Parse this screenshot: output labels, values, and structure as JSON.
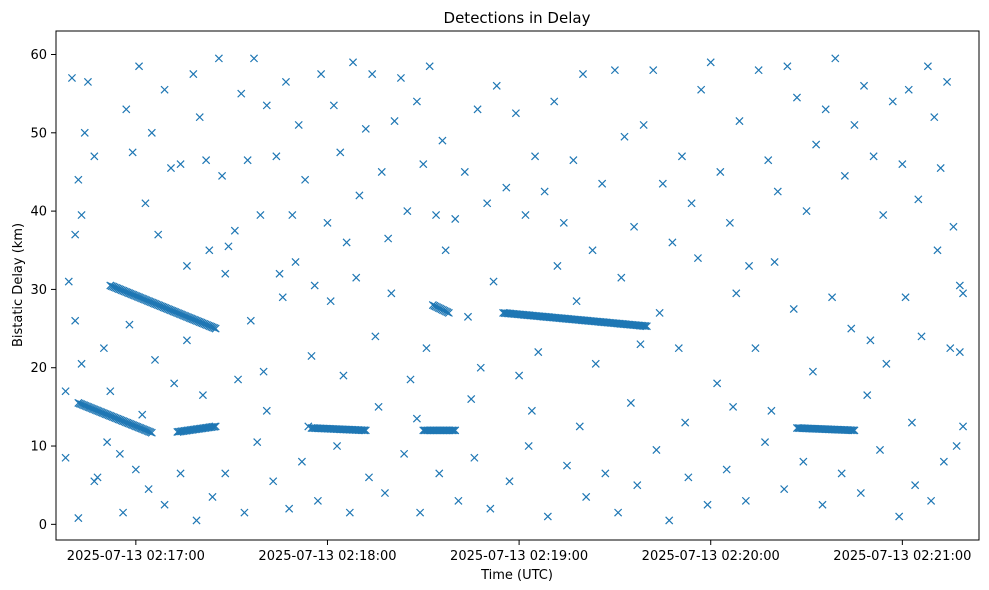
{
  "chart_data": {
    "type": "scatter",
    "title": "Detections in Delay",
    "xlabel": "Time (UTC)",
    "ylabel": "Bistatic Delay (km)",
    "marker": "x",
    "color": "#1f77b4",
    "grid": false,
    "legend": "none",
    "xlim": [
      "2025-07-13 02:16:35",
      "2025-07-13 02:21:24"
    ],
    "ylim": [
      -2,
      63
    ],
    "x_ticks": [
      "2025-07-13 02:17:00",
      "2025-07-13 02:18:00",
      "2025-07-13 02:19:00",
      "2025-07-13 02:20:00",
      "2025-07-13 02:21:00"
    ],
    "y_ticks": [
      "0",
      "10",
      "20",
      "30",
      "40",
      "50",
      "60"
    ],
    "tracks": [
      {
        "start": [
          "2025-07-13 02:16:42",
          15.5
        ],
        "end": [
          "2025-07-13 02:17:05",
          11.7
        ]
      },
      {
        "start": [
          "2025-07-13 02:17:13",
          11.8
        ],
        "end": [
          "2025-07-13 02:17:25",
          12.5
        ]
      },
      {
        "start": [
          "2025-07-13 02:16:52",
          30.5
        ],
        "end": [
          "2025-07-13 02:17:25",
          25.0
        ]
      },
      {
        "start": [
          "2025-07-13 02:17:55",
          12.3
        ],
        "end": [
          "2025-07-13 02:18:12",
          12.0
        ]
      },
      {
        "start": [
          "2025-07-13 02:18:30",
          12.0
        ],
        "end": [
          "2025-07-13 02:18:40",
          12.0
        ]
      },
      {
        "start": [
          "2025-07-13 02:18:33",
          28.0
        ],
        "end": [
          "2025-07-13 02:18:38",
          27.0
        ]
      },
      {
        "start": [
          "2025-07-13 02:18:55",
          27.0
        ],
        "end": [
          "2025-07-13 02:19:40",
          25.3
        ]
      },
      {
        "start": [
          "2025-07-13 02:20:27",
          12.3
        ],
        "end": [
          "2025-07-13 02:20:45",
          12.0
        ]
      }
    ],
    "points": [
      [
        "2025-07-13 02:16:40",
        57.0
      ],
      [
        "2025-07-13 02:16:45",
        56.5
      ],
      [
        "2025-07-13 02:16:42",
        44.0
      ],
      [
        "2025-07-13 02:16:44",
        50.0
      ],
      [
        "2025-07-13 02:16:47",
        47.0
      ],
      [
        "2025-07-13 02:16:43",
        39.5
      ],
      [
        "2025-07-13 02:16:41",
        37.0
      ],
      [
        "2025-07-13 02:16:39",
        31.0
      ],
      [
        "2025-07-13 02:16:41",
        26.0
      ],
      [
        "2025-07-13 02:16:43",
        20.5
      ],
      [
        "2025-07-13 02:16:38",
        17.0
      ],
      [
        "2025-07-13 02:16:38",
        8.5
      ],
      [
        "2025-07-13 02:16:42",
        0.8
      ],
      [
        "2025-07-13 02:16:48",
        6.0
      ],
      [
        "2025-07-13 02:16:52",
        17.0
      ],
      [
        "2025-07-13 02:16:55",
        9.0
      ],
      [
        "2025-07-13 02:16:57",
        53.0
      ],
      [
        "2025-07-13 02:16:59",
        47.5
      ],
      [
        "2025-07-13 02:17:01",
        58.5
      ],
      [
        "2025-07-13 02:17:03",
        41.0
      ],
      [
        "2025-07-13 02:17:05",
        50.0
      ],
      [
        "2025-07-13 02:17:07",
        37.0
      ],
      [
        "2025-07-13 02:17:09",
        55.5
      ],
      [
        "2025-07-13 02:17:11",
        45.5
      ],
      [
        "2025-07-13 02:17:14",
        46.0
      ],
      [
        "2025-07-13 02:17:16",
        33.0
      ],
      [
        "2025-07-13 02:17:18",
        57.5
      ],
      [
        "2025-07-13 02:17:20",
        52.0
      ],
      [
        "2025-07-13 02:17:22",
        46.5
      ],
      [
        "2025-07-13 02:17:23",
        35.0
      ],
      [
        "2025-07-13 02:17:26",
        59.5
      ],
      [
        "2025-07-13 02:17:27",
        44.5
      ],
      [
        "2025-07-13 02:17:29",
        35.5
      ],
      [
        "2025-07-13 02:17:31",
        37.5
      ],
      [
        "2025-07-13 02:17:33",
        55.0
      ],
      [
        "2025-07-13 02:17:35",
        46.5
      ],
      [
        "2025-07-13 02:17:37",
        59.5
      ],
      [
        "2025-07-13 02:17:39",
        39.5
      ],
      [
        "2025-07-13 02:17:41",
        53.5
      ],
      [
        "2025-07-13 02:17:44",
        47.0
      ],
      [
        "2025-07-13 02:17:45",
        32.0
      ],
      [
        "2025-07-13 02:17:47",
        56.5
      ],
      [
        "2025-07-13 02:17:49",
        39.5
      ],
      [
        "2025-07-13 02:17:51",
        51.0
      ],
      [
        "2025-07-13 02:17:53",
        44.0
      ],
      [
        "2025-07-13 02:17:56",
        30.5
      ],
      [
        "2025-07-13 02:17:58",
        57.5
      ],
      [
        "2025-07-13 02:18:00",
        38.5
      ],
      [
        "2025-07-13 02:18:02",
        53.5
      ],
      [
        "2025-07-13 02:18:04",
        47.5
      ],
      [
        "2025-07-13 02:18:06",
        36.0
      ],
      [
        "2025-07-13 02:18:08",
        59.0
      ],
      [
        "2025-07-13 02:18:10",
        42.0
      ],
      [
        "2025-07-13 02:18:12",
        50.5
      ],
      [
        "2025-07-13 02:18:14",
        57.5
      ],
      [
        "2025-07-13 02:18:17",
        45.0
      ],
      [
        "2025-07-13 02:18:19",
        36.5
      ],
      [
        "2025-07-13 02:18:21",
        51.5
      ],
      [
        "2025-07-13 02:18:23",
        57.0
      ],
      [
        "2025-07-13 02:18:25",
        40.0
      ],
      [
        "2025-07-13 02:18:28",
        54.0
      ],
      [
        "2025-07-13 02:18:30",
        46.0
      ],
      [
        "2025-07-13 02:18:32",
        58.5
      ],
      [
        "2025-07-13 02:18:34",
        39.5
      ],
      [
        "2025-07-13 02:18:36",
        49.0
      ],
      [
        "2025-07-13 02:18:40",
        39.0
      ],
      [
        "2025-07-13 02:18:43",
        45.0
      ],
      [
        "2025-07-13 02:18:47",
        53.0
      ],
      [
        "2025-07-13 02:18:50",
        41.0
      ],
      [
        "2025-07-13 02:18:53",
        56.0
      ],
      [
        "2025-07-13 02:18:56",
        43.0
      ],
      [
        "2025-07-13 02:18:59",
        52.5
      ],
      [
        "2025-07-13 02:19:02",
        39.5
      ],
      [
        "2025-07-13 02:19:05",
        47.0
      ],
      [
        "2025-07-13 02:19:08",
        42.5
      ],
      [
        "2025-07-13 02:19:11",
        54.0
      ],
      [
        "2025-07-13 02:19:14",
        38.5
      ],
      [
        "2025-07-13 02:19:17",
        46.5
      ],
      [
        "2025-07-13 02:19:20",
        57.5
      ],
      [
        "2025-07-13 02:19:23",
        35.0
      ],
      [
        "2025-07-13 02:19:26",
        43.5
      ],
      [
        "2025-07-13 02:19:30",
        58.0
      ],
      [
        "2025-07-13 02:19:33",
        49.5
      ],
      [
        "2025-07-13 02:19:36",
        38.0
      ],
      [
        "2025-07-13 02:19:39",
        51.0
      ],
      [
        "2025-07-13 02:19:42",
        58.0
      ],
      [
        "2025-07-13 02:19:45",
        43.5
      ],
      [
        "2025-07-13 02:19:48",
        36.0
      ],
      [
        "2025-07-13 02:19:51",
        47.0
      ],
      [
        "2025-07-13 02:19:54",
        41.0
      ],
      [
        "2025-07-13 02:19:57",
        55.5
      ],
      [
        "2025-07-13 02:20:00",
        59.0
      ],
      [
        "2025-07-13 02:20:03",
        45.0
      ],
      [
        "2025-07-13 02:20:06",
        38.5
      ],
      [
        "2025-07-13 02:20:09",
        51.5
      ],
      [
        "2025-07-13 02:20:12",
        33.0
      ],
      [
        "2025-07-13 02:20:15",
        58.0
      ],
      [
        "2025-07-13 02:20:18",
        46.5
      ],
      [
        "2025-07-13 02:20:21",
        42.5
      ],
      [
        "2025-07-13 02:20:24",
        58.5
      ],
      [
        "2025-07-13 02:20:27",
        54.5
      ],
      [
        "2025-07-13 02:20:30",
        40.0
      ],
      [
        "2025-07-13 02:20:33",
        48.5
      ],
      [
        "2025-07-13 02:20:36",
        53.0
      ],
      [
        "2025-07-13 02:20:39",
        59.5
      ],
      [
        "2025-07-13 02:20:42",
        44.5
      ],
      [
        "2025-07-13 02:20:45",
        51.0
      ],
      [
        "2025-07-13 02:20:48",
        56.0
      ],
      [
        "2025-07-13 02:20:51",
        47.0
      ],
      [
        "2025-07-13 02:20:54",
        39.5
      ],
      [
        "2025-07-13 02:20:57",
        54.0
      ],
      [
        "2025-07-13 02:21:00",
        46.0
      ],
      [
        "2025-07-13 02:21:02",
        55.5
      ],
      [
        "2025-07-13 02:21:05",
        41.5
      ],
      [
        "2025-07-13 02:21:08",
        58.5
      ],
      [
        "2025-07-13 02:21:10",
        52.0
      ],
      [
        "2025-07-13 02:21:12",
        45.5
      ],
      [
        "2025-07-13 02:21:14",
        56.5
      ],
      [
        "2025-07-13 02:21:16",
        38.0
      ],
      [
        "2025-07-13 02:16:58",
        25.5
      ],
      [
        "2025-07-13 02:17:06",
        21.0
      ],
      [
        "2025-07-13 02:17:12",
        18.0
      ],
      [
        "2025-07-13 02:17:16",
        23.5
      ],
      [
        "2025-07-13 02:17:28",
        32.0
      ],
      [
        "2025-07-13 02:17:32",
        18.5
      ],
      [
        "2025-07-13 02:17:36",
        26.0
      ],
      [
        "2025-07-13 02:17:40",
        19.5
      ],
      [
        "2025-07-13 02:17:46",
        29.0
      ],
      [
        "2025-07-13 02:17:50",
        33.5
      ],
      [
        "2025-07-13 02:17:55",
        21.5
      ],
      [
        "2025-07-13 02:18:01",
        28.5
      ],
      [
        "2025-07-13 02:18:05",
        19.0
      ],
      [
        "2025-07-13 02:18:09",
        31.5
      ],
      [
        "2025-07-13 02:18:15",
        24.0
      ],
      [
        "2025-07-13 02:18:20",
        29.5
      ],
      [
        "2025-07-13 02:18:26",
        18.5
      ],
      [
        "2025-07-13 02:18:31",
        22.5
      ],
      [
        "2025-07-13 02:18:37",
        35.0
      ],
      [
        "2025-07-13 02:18:44",
        26.5
      ],
      [
        "2025-07-13 02:18:48",
        20.0
      ],
      [
        "2025-07-13 02:18:52",
        31.0
      ],
      [
        "2025-07-13 02:19:00",
        19.0
      ],
      [
        "2025-07-13 02:19:06",
        22.0
      ],
      [
        "2025-07-13 02:19:12",
        33.0
      ],
      [
        "2025-07-13 02:19:18",
        28.5
      ],
      [
        "2025-07-13 02:19:24",
        20.5
      ],
      [
        "2025-07-13 02:19:32",
        31.5
      ],
      [
        "2025-07-13 02:19:38",
        23.0
      ],
      [
        "2025-07-13 02:19:44",
        27.0
      ],
      [
        "2025-07-13 02:19:50",
        22.5
      ],
      [
        "2025-07-13 02:19:56",
        34.0
      ],
      [
        "2025-07-13 02:20:02",
        18.0
      ],
      [
        "2025-07-13 02:20:08",
        29.5
      ],
      [
        "2025-07-13 02:20:14",
        22.5
      ],
      [
        "2025-07-13 02:20:20",
        33.5
      ],
      [
        "2025-07-13 02:20:26",
        27.5
      ],
      [
        "2025-07-13 02:20:32",
        19.5
      ],
      [
        "2025-07-13 02:20:38",
        29.0
      ],
      [
        "2025-07-13 02:20:44",
        25.0
      ],
      [
        "2025-07-13 02:20:50",
        23.5
      ],
      [
        "2025-07-13 02:20:55",
        20.5
      ],
      [
        "2025-07-13 02:21:01",
        29.0
      ],
      [
        "2025-07-13 02:21:06",
        24.0
      ],
      [
        "2025-07-13 02:21:11",
        35.0
      ],
      [
        "2025-07-13 02:21:15",
        22.5
      ],
      [
        "2025-07-13 02:21:18",
        30.5
      ],
      [
        "2025-07-13 02:21:19",
        29.5
      ],
      [
        "2025-07-13 02:16:47",
        5.5
      ],
      [
        "2025-07-13 02:16:51",
        10.5
      ],
      [
        "2025-07-13 02:16:56",
        1.5
      ],
      [
        "2025-07-13 02:17:00",
        7.0
      ],
      [
        "2025-07-13 02:17:04",
        4.5
      ],
      [
        "2025-07-13 02:17:09",
        2.5
      ],
      [
        "2025-07-13 02:17:14",
        6.5
      ],
      [
        "2025-07-13 02:17:19",
        0.5
      ],
      [
        "2025-07-13 02:17:24",
        3.5
      ],
      [
        "2025-07-13 02:17:28",
        6.5
      ],
      [
        "2025-07-13 02:17:34",
        1.5
      ],
      [
        "2025-07-13 02:17:38",
        10.5
      ],
      [
        "2025-07-13 02:17:43",
        5.5
      ],
      [
        "2025-07-13 02:17:48",
        2.0
      ],
      [
        "2025-07-13 02:17:52",
        8.0
      ],
      [
        "2025-07-13 02:17:57",
        3.0
      ],
      [
        "2025-07-13 02:18:03",
        10.0
      ],
      [
        "2025-07-13 02:18:07",
        1.5
      ],
      [
        "2025-07-13 02:18:13",
        6.0
      ],
      [
        "2025-07-13 02:18:18",
        4.0
      ],
      [
        "2025-07-13 02:18:24",
        9.0
      ],
      [
        "2025-07-13 02:18:29",
        1.5
      ],
      [
        "2025-07-13 02:18:35",
        6.5
      ],
      [
        "2025-07-13 02:18:41",
        3.0
      ],
      [
        "2025-07-13 02:18:46",
        8.5
      ],
      [
        "2025-07-13 02:18:51",
        2.0
      ],
      [
        "2025-07-13 02:18:57",
        5.5
      ],
      [
        "2025-07-13 02:19:03",
        10.0
      ],
      [
        "2025-07-13 02:19:09",
        1.0
      ],
      [
        "2025-07-13 02:19:15",
        7.5
      ],
      [
        "2025-07-13 02:19:21",
        3.5
      ],
      [
        "2025-07-13 02:19:27",
        6.5
      ],
      [
        "2025-07-13 02:19:31",
        1.5
      ],
      [
        "2025-07-13 02:19:37",
        5.0
      ],
      [
        "2025-07-13 02:19:43",
        9.5
      ],
      [
        "2025-07-13 02:19:47",
        0.5
      ],
      [
        "2025-07-13 02:19:53",
        6.0
      ],
      [
        "2025-07-13 02:19:59",
        2.5
      ],
      [
        "2025-07-13 02:20:05",
        7.0
      ],
      [
        "2025-07-13 02:20:11",
        3.0
      ],
      [
        "2025-07-13 02:20:17",
        10.5
      ],
      [
        "2025-07-13 02:20:23",
        4.5
      ],
      [
        "2025-07-13 02:20:29",
        8.0
      ],
      [
        "2025-07-13 02:20:35",
        2.5
      ],
      [
        "2025-07-13 02:20:41",
        6.5
      ],
      [
        "2025-07-13 02:20:47",
        4.0
      ],
      [
        "2025-07-13 02:20:53",
        9.5
      ],
      [
        "2025-07-13 02:20:59",
        1.0
      ],
      [
        "2025-07-13 02:21:04",
        5.0
      ],
      [
        "2025-07-13 02:21:09",
        3.0
      ],
      [
        "2025-07-13 02:21:13",
        8.0
      ],
      [
        "2025-07-13 02:21:17",
        10.0
      ],
      [
        "2025-07-13 02:21:19",
        12.5
      ],
      [
        "2025-07-13 02:21:18",
        22.0
      ],
      [
        "2025-07-13 02:16:50",
        22.5
      ],
      [
        "2025-07-13 02:17:02",
        14.0
      ],
      [
        "2025-07-13 02:17:21",
        16.5
      ],
      [
        "2025-07-13 02:17:41",
        14.5
      ],
      [
        "2025-07-13 02:17:54",
        12.5
      ],
      [
        "2025-07-13 02:18:16",
        15.0
      ],
      [
        "2025-07-13 02:18:28",
        13.5
      ],
      [
        "2025-07-13 02:18:45",
        16.0
      ],
      [
        "2025-07-13 02:19:04",
        14.5
      ],
      [
        "2025-07-13 02:19:19",
        12.5
      ],
      [
        "2025-07-13 02:19:35",
        15.5
      ],
      [
        "2025-07-13 02:19:52",
        13.0
      ],
      [
        "2025-07-13 02:20:07",
        15.0
      ],
      [
        "2025-07-13 02:20:19",
        14.5
      ],
      [
        "2025-07-13 02:20:49",
        16.5
      ],
      [
        "2025-07-13 02:21:03",
        13.0
      ]
    ]
  }
}
